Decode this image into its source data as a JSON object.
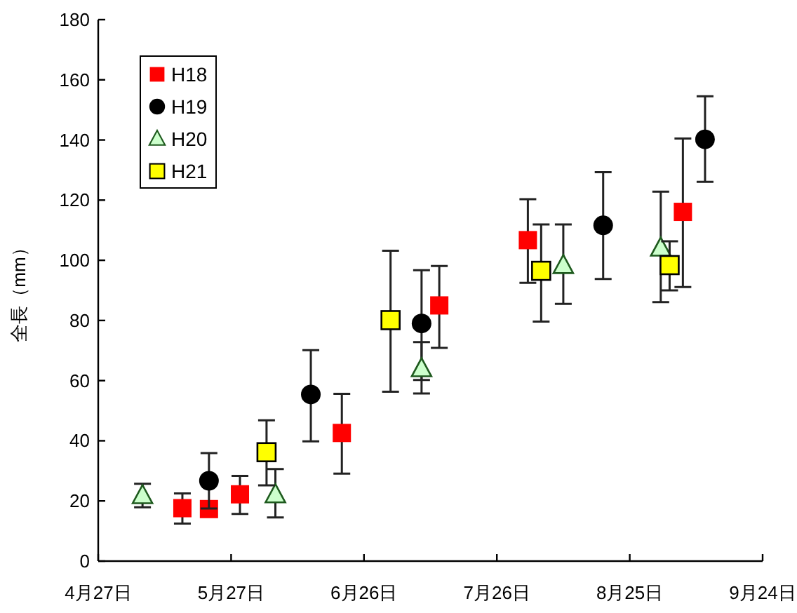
{
  "chart_data": {
    "type": "scatter",
    "ylabel": "全長（mm）",
    "legend": "top left",
    "xlim": [
      "--04-27",
      "--09-24"
    ],
    "xticks": [
      {
        "value": "--04-27",
        "label": "4月27日"
      },
      {
        "value": "--05-27",
        "label": "5月27日"
      },
      {
        "value": "--06-26",
        "label": "6月26日"
      },
      {
        "value": "--07-26",
        "label": "7月26日"
      },
      {
        "value": "--08-25",
        "label": "8月25日"
      },
      {
        "value": "--09-24",
        "label": "9月24日"
      }
    ],
    "ylim": [
      0,
      180
    ],
    "yticks": [
      0,
      20,
      40,
      60,
      80,
      100,
      120,
      140,
      160,
      180
    ],
    "series": [
      {
        "name": "H18",
        "color": "#ff0000",
        "marker": "square",
        "x": [
          "--05-16",
          "--05-22",
          "--05-29",
          "--06-21",
          "--07-13",
          "--08-02",
          "--09-06"
        ],
        "values": [
          17.6,
          17.3,
          22.2,
          42.6,
          85,
          106.7,
          116.1
        ],
        "errors": [
          [
            12.5,
            22.5
          ],
          null,
          [
            15.7,
            28.3
          ],
          [
            29.1,
            55.6
          ],
          [
            70.9,
            98.1
          ],
          [
            92.5,
            120.3
          ],
          [
            91.1,
            140.5
          ]
        ]
      },
      {
        "name": "H19",
        "color": "#000000",
        "marker": "circle",
        "x": [
          "--05-22",
          "--06-14",
          "--07-09",
          "--08-19",
          "--09-11"
        ],
        "values": [
          26.7,
          55.4,
          79,
          111.6,
          140.2
        ],
        "errors": [
          [
            17.5,
            35.9
          ],
          [
            39.8,
            70.1
          ],
          [
            60.2,
            96.7
          ],
          [
            93.8,
            129.3
          ],
          [
            126.1,
            154.5
          ]
        ]
      },
      {
        "name": "H20",
        "color": "#ccffcc",
        "marker": "triangle",
        "x": [
          "--05-07",
          "--06-06",
          "--07-09",
          "--08-10",
          "--09-01"
        ],
        "values": [
          21.8,
          22.1,
          64,
          98.3,
          104.1
        ],
        "errors": [
          [
            17.9,
            25.7
          ],
          [
            14.5,
            30.6
          ],
          [
            55.7,
            72.8
          ],
          [
            85.5,
            111.9
          ],
          [
            86.1,
            122.8
          ]
        ]
      },
      {
        "name": "H21",
        "color": "#ffff00",
        "marker": "square",
        "x": [
          "--06-04",
          "--07-02",
          "--08-05",
          "--09-03"
        ],
        "values": [
          36.2,
          80.1,
          96.5,
          98.4
        ],
        "errors": [
          [
            25.2,
            46.8
          ],
          [
            56.3,
            103.2
          ],
          [
            79.6,
            111.9
          ],
          [
            90,
            106.3
          ]
        ]
      }
    ]
  }
}
